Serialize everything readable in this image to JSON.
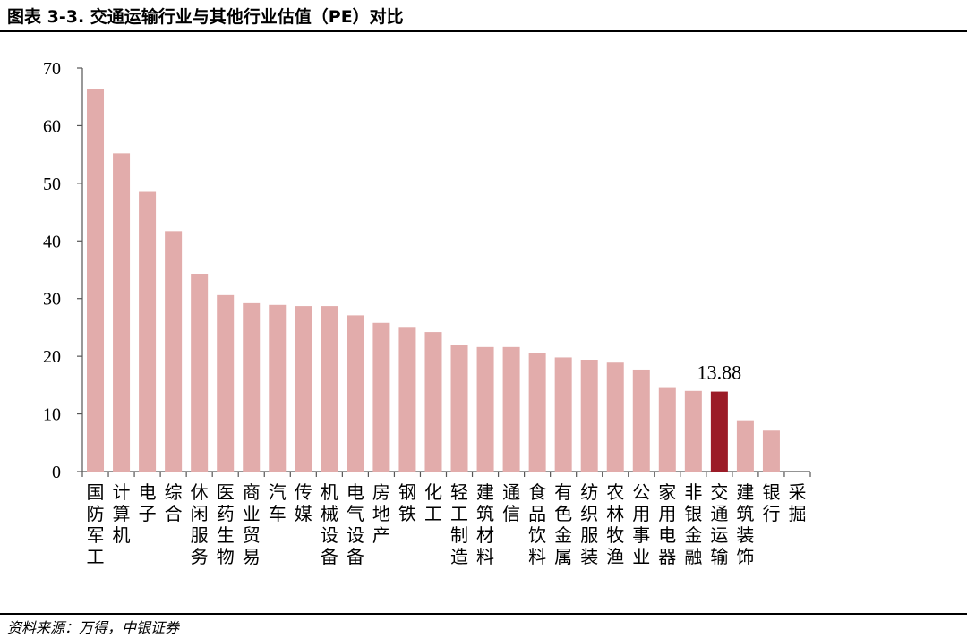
{
  "title": "图表 3-3. 交通运输行业与其他行业估值（PE）对比",
  "source": "资料来源：万得，中银证券",
  "colors": {
    "bar": "#e2acab",
    "highlight": "#9b1b27"
  },
  "chart_data": {
    "type": "bar",
    "ylim": [
      0,
      70
    ],
    "yticks": [
      0,
      10,
      20,
      30,
      40,
      50,
      60,
      70
    ],
    "categories": [
      "国防军工",
      "计算机",
      "电子",
      "综合",
      "休闲服务",
      "医药生物",
      "商业贸易",
      "汽车",
      "传媒",
      "机械设备",
      "电气设备",
      "房地产",
      "钢铁",
      "化工",
      "轻工制造",
      "建筑材料",
      "通信",
      "食品饮料",
      "有色金属",
      "纺织服装",
      "农林牧渔",
      "公用事业",
      "家用电器",
      "非银金融",
      "交通运输",
      "建筑装饰",
      "银行",
      "采掘"
    ],
    "values": [
      66.4,
      55.2,
      48.5,
      41.7,
      34.3,
      30.6,
      29.2,
      28.9,
      28.7,
      28.7,
      27.1,
      25.8,
      25.1,
      24.2,
      21.9,
      21.6,
      21.6,
      20.5,
      19.8,
      19.4,
      18.9,
      17.7,
      14.5,
      14.0,
      13.88,
      8.9,
      7.1,
      0
    ],
    "highlight_index": 24,
    "data_labels": [
      {
        "index": 24,
        "text": "13.88"
      }
    ],
    "legend": "none",
    "grid": false
  }
}
